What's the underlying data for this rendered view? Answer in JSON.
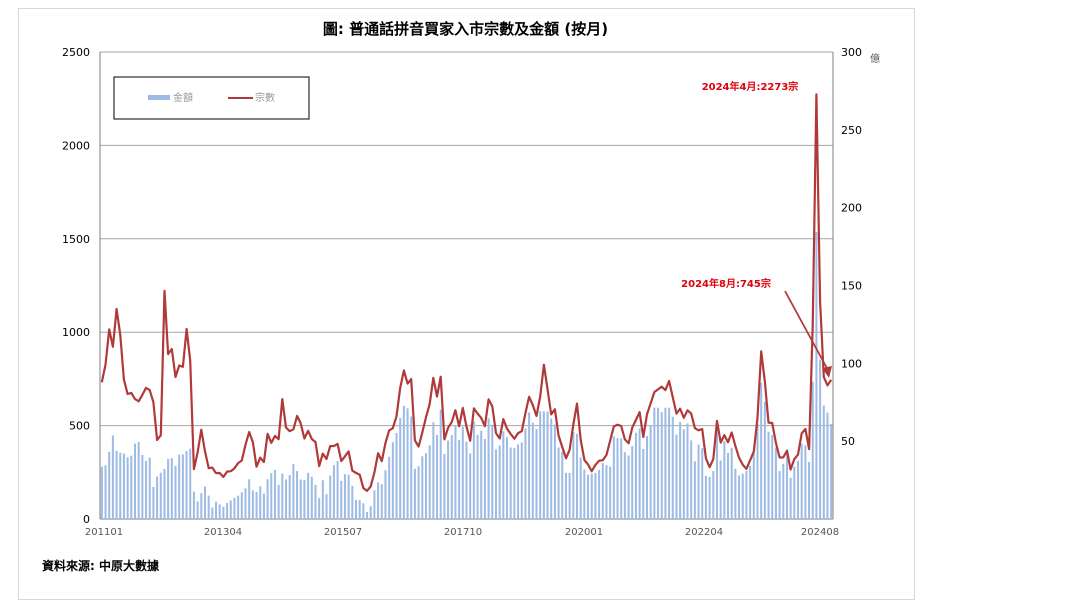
{
  "chart_data": {
    "type": "bar+line",
    "title": "圖: 普通話拼音買家入市宗數及金額 (按月)",
    "source": "資料來源: 中原大數據",
    "colors": {
      "bars": "#9dbbe4",
      "line": "#b03a3a",
      "annotation": "#e0000b",
      "grid": "#a6a6a6"
    },
    "y_left": {
      "ticks": [
        0,
        500,
        1000,
        1500,
        2000,
        2500
      ],
      "range": [
        0,
        2500
      ]
    },
    "y_right": {
      "ticks": [
        50,
        100,
        150,
        200,
        250,
        300
      ],
      "range": [
        0,
        300
      ],
      "label": "億"
    },
    "x_ticks": [
      "201101",
      "201304",
      "201507",
      "201710",
      "202001",
      "202204",
      "202408"
    ],
    "legend": {
      "placement": "top-left",
      "bar_label": "金額",
      "line_label": "宗數"
    },
    "annotations": [
      {
        "text": "2024年4月:2273宗"
      },
      {
        "text": "2024年8月:745宗"
      }
    ],
    "series_line_count": [
      732,
      826,
      1015,
      922,
      1124,
      984,
      746,
      669,
      675,
      642,
      630,
      665,
      702,
      690,
      625,
      423,
      448,
      1221,
      883,
      910,
      760,
      822,
      815,
      1017,
      849,
      267,
      356,
      478,
      362,
      272,
      275,
      245,
      246,
      225,
      254,
      256,
      271,
      299,
      313,
      398,
      466,
      410,
      280,
      328,
      305,
      456,
      408,
      445,
      427,
      642,
      490,
      470,
      480,
      552,
      512,
      431,
      472,
      428,
      412,
      283,
      350,
      321,
      390,
      391,
      402,
      310,
      335,
      362,
      259,
      247,
      237,
      165,
      151,
      174,
      249,
      352,
      310,
      408,
      474,
      486,
      550,
      702,
      795,
      725,
      749,
      421,
      388,
      463,
      545,
      616,
      756,
      655,
      762,
      426,
      488,
      520,
      582,
      496,
      594,
      494,
      419,
      592,
      564,
      541,
      497,
      640,
      603,
      460,
      431,
      535,
      484,
      455,
      430,
      460,
      470,
      566,
      654,
      610,
      552,
      655,
      826,
      696,
      560,
      587,
      446,
      385,
      325,
      370,
      505,
      618,
      424,
      316,
      291,
      256,
      289,
      312,
      315,
      343,
      420,
      495,
      505,
      498,
      426,
      405,
      490,
      530,
      572,
      439,
      561,
      620,
      680,
      694,
      708,
      690,
      739,
      651,
      564,
      591,
      542,
      582,
      564,
      486,
      475,
      482,
      325,
      278,
      320,
      525,
      409,
      449,
      411,
      463,
      391,
      327,
      290,
      268,
      314,
      361,
      543,
      897,
      734,
      516,
      514,
      408,
      329,
      330,
      366,
      265,
      320,
      345,
      458,
      482,
      374,
      1034,
      2273,
      1163,
      760,
      715,
      745
    ],
    "series_bar_amount": [
      33.5,
      34.5,
      43.2,
      53.6,
      43.8,
      42.6,
      42.1,
      39.6,
      40.7,
      48.4,
      49.5,
      41.1,
      37.2,
      39.4,
      20.6,
      27.3,
      29.7,
      32.1,
      38.6,
      39.1,
      34.1,
      41.3,
      41.5,
      43.7,
      45.2,
      17.6,
      11.2,
      16.6,
      20.9,
      15.0,
      7.4,
      11.1,
      9.4,
      7.9,
      10.3,
      11.9,
      13.6,
      15.0,
      17.1,
      19.7,
      25.5,
      18.4,
      17.4,
      21.0,
      16.4,
      25.6,
      29.5,
      31.6,
      22.0,
      29.2,
      25.4,
      28.3,
      35.4,
      30.8,
      25.4,
      25.1,
      29.6,
      27.1,
      22.0,
      13.4,
      24.9,
      16.0,
      27.9,
      34.6,
      37.3,
      24.5,
      28.8,
      28.5,
      21.3,
      12.3,
      12.2,
      10.1,
      4.5,
      8.2,
      18.4,
      23.5,
      22.4,
      31.4,
      40.0,
      49.3,
      55.3,
      64.9,
      72.7,
      71.1,
      65.8,
      32.2,
      33.9,
      40.3,
      42.3,
      47.3,
      62.2,
      54.0,
      70.3,
      41.8,
      50.4,
      53.9,
      60.0,
      50.8,
      59.3,
      49.7,
      42.1,
      62.6,
      54.1,
      56.7,
      51.4,
      64.6,
      60.6,
      44.7,
      47.2,
      56.3,
      52.6,
      45.9,
      45.7,
      47.9,
      49.2,
      58.2,
      68.5,
      61.9,
      57.8,
      69.2,
      69.2,
      69.0,
      64.6,
      60.7,
      45.9,
      43.3,
      29.7,
      29.6,
      55.9,
      54.7,
      39.5,
      31.8,
      28.5,
      29.2,
      29.6,
      31.5,
      35.9,
      34.6,
      33.7,
      53.1,
      51.9,
      51.8,
      42.9,
      40.8,
      46.8,
      55.4,
      58.1,
      45.0,
      53.3,
      60.3,
      71.5,
      71.5,
      68.6,
      71.5,
      71.5,
      65.7,
      54.2,
      62.3,
      57.6,
      61.4,
      50.5,
      37.0,
      47.8,
      45.4,
      27.7,
      27.0,
      30.8,
      60.5,
      37.6,
      50.1,
      42.5,
      45.7,
      32.3,
      28.0,
      29.1,
      30.8,
      34.3,
      42.2,
      61.3,
      87.5,
      75.3,
      56.0,
      54.0,
      46.0,
      30.8,
      35.4,
      42.5,
      26.4,
      33.6,
      37.3,
      48.4,
      47.3,
      36.6,
      88.2,
      184.5,
      102.4,
      72.9,
      68.4,
      61.1
    ]
  }
}
